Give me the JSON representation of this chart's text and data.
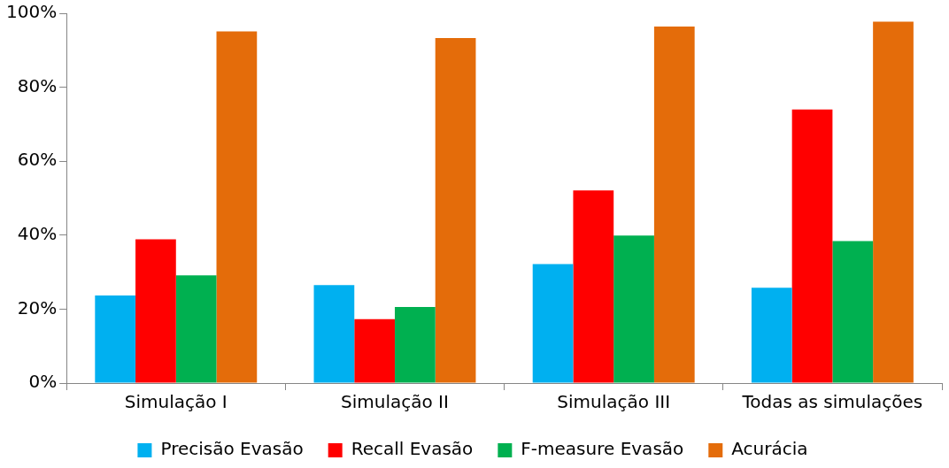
{
  "chart_data": {
    "type": "bar",
    "categories": [
      "Simulação I",
      "Simulação II",
      "Simulação III",
      "Todas as simulações"
    ],
    "series": [
      {
        "name": "Precisão Evasão",
        "color": "#00b0f0",
        "values": [
          23.7,
          26.5,
          32.2,
          25.8
        ]
      },
      {
        "name": "Recall Evasão",
        "color": "#ff0000",
        "values": [
          38.9,
          17.3,
          52.1,
          74.0
        ]
      },
      {
        "name": "F-measure Evasão",
        "color": "#00b050",
        "values": [
          29.1,
          20.6,
          39.9,
          38.4
        ]
      },
      {
        "name": "Acurácia",
        "color": "#e46c0a",
        "values": [
          95.1,
          93.3,
          96.4,
          97.7
        ]
      }
    ],
    "ylim": [
      0,
      100
    ],
    "yticks": [
      {
        "value": 0,
        "label": "0%"
      },
      {
        "value": 20,
        "label": "20%"
      },
      {
        "value": 40,
        "label": "40%"
      },
      {
        "value": 60,
        "label": "60%"
      },
      {
        "value": 80,
        "label": "80%"
      },
      {
        "value": 100,
        "label": "100%"
      }
    ],
    "grid": false,
    "legend": "bottom"
  }
}
